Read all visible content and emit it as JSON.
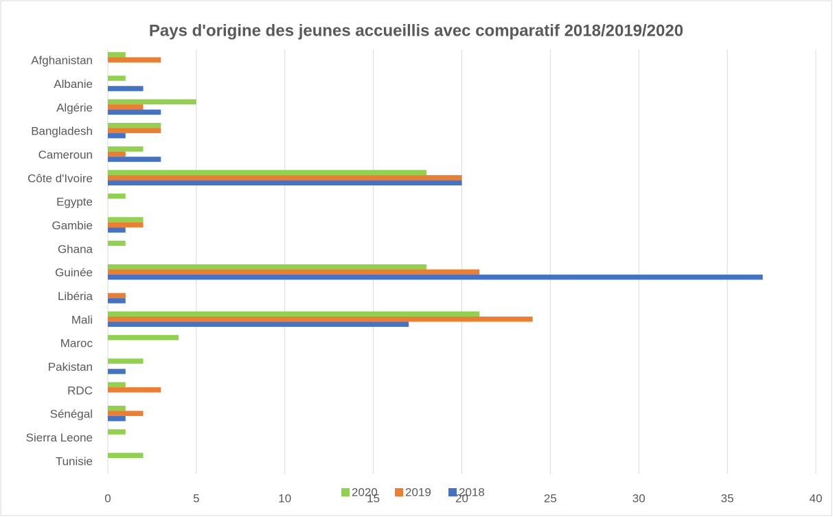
{
  "chart_data": {
    "type": "barh",
    "title": "Pays d'origine des jeunes accueillis avec comparatif 2018/2019/2020",
    "categories": [
      "Afghanistan",
      "Albanie",
      "Algérie",
      "Bangladesh",
      "Cameroun",
      "Côte d'Ivoire",
      "Egypte",
      "Gambie",
      "Ghana",
      "Guinée",
      "Libéria",
      "Mali",
      "Maroc",
      "Pakistan",
      "RDC",
      "Sénégal",
      "Sierra Leone",
      "Tunisie"
    ],
    "series": [
      {
        "name": "2020",
        "color": "#92d050",
        "values": [
          1,
          1,
          5,
          3,
          2,
          18,
          1,
          2,
          1,
          18,
          0,
          21,
          4,
          2,
          1,
          1,
          1,
          2
        ]
      },
      {
        "name": "2019",
        "color": "#ed7d31",
        "values": [
          3,
          0,
          2,
          3,
          1,
          20,
          0,
          2,
          0,
          21,
          1,
          24,
          0,
          0,
          3,
          2,
          0,
          0
        ]
      },
      {
        "name": "2018",
        "color": "#4472c4",
        "values": [
          0,
          2,
          3,
          1,
          3,
          20,
          0,
          1,
          0,
          37,
          1,
          17,
          0,
          1,
          0,
          1,
          0,
          0
        ]
      }
    ],
    "xlim": [
      0,
      40
    ],
    "xticks": [
      0,
      5,
      10,
      15,
      20,
      25,
      30,
      35,
      40
    ],
    "grid": true,
    "legend": "bottom"
  }
}
